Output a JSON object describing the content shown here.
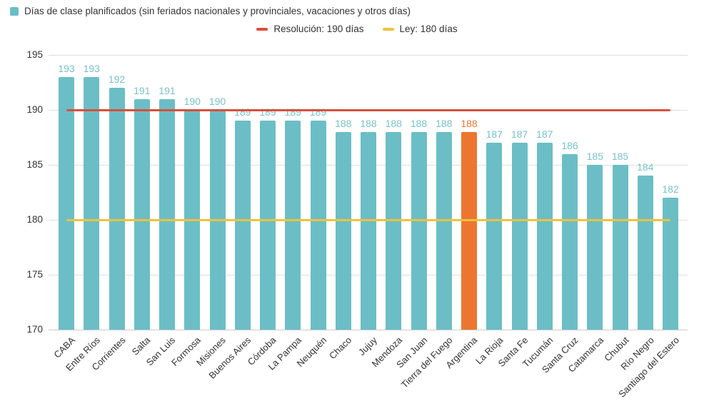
{
  "legend": {
    "series_label": "Días de clase planificados (sin feriados nacionales y provinciales, vacaciones y otros días)"
  },
  "chart_data": {
    "type": "bar",
    "title": "",
    "xlabel": "",
    "ylabel": "",
    "categories": [
      "CABA",
      "Entre Ríos",
      "Corrientes",
      "Salta",
      "San Luis",
      "Formosa",
      "Misiones",
      "Buenos Aires",
      "Córdoba",
      "La Pampa",
      "Neuquén",
      "Chaco",
      "Jujuy",
      "Mendoza",
      "San Juan",
      "Tierra del Fuego",
      "Argentina",
      "La Rioja",
      "Santa Fe",
      "Tucumán",
      "Santa Cruz",
      "Catamarca",
      "Chubut",
      "Río Negro",
      "Santiago del Estero"
    ],
    "series": [
      {
        "name": "Días de clase planificados (sin feriados nacionales y provinciales, vacaciones y otros días)",
        "values": [
          193,
          193,
          192,
          191,
          191,
          190,
          190,
          189,
          189,
          189,
          189,
          188,
          188,
          188,
          188,
          188,
          188,
          187,
          187,
          187,
          186,
          185,
          185,
          184,
          182
        ]
      }
    ],
    "bar_color": "#6bbec6",
    "value_label_color": "#76c2cb",
    "highlight": {
      "category": "Argentina",
      "index": 16,
      "color": "#ec7630"
    },
    "ylim": [
      170,
      195
    ],
    "yticks": [
      170,
      175,
      180,
      185,
      190,
      195
    ],
    "grid": true,
    "legend_position": "top",
    "reference_lines": [
      {
        "label": "Resolución: 190 días",
        "value": 190,
        "color": "#d94f3b"
      },
      {
        "label": "Ley: 180 días",
        "value": 180,
        "color": "#f0c23c"
      }
    ]
  }
}
